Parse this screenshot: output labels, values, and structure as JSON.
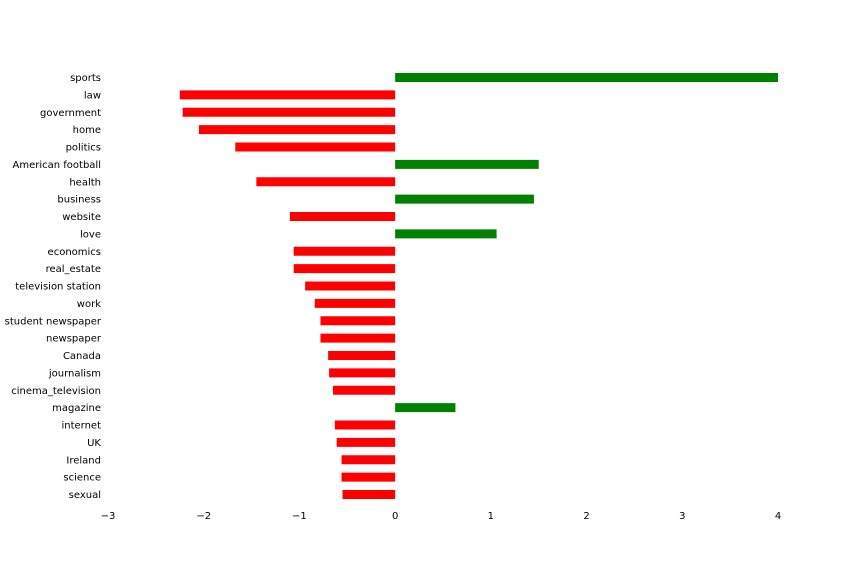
{
  "chart_data": {
    "type": "bar",
    "orientation": "horizontal",
    "title": "",
    "xlabel": "",
    "ylabel": "",
    "xlim": [
      -3,
      4
    ],
    "xticks": [
      "−3",
      "−2",
      "−1",
      "0",
      "1",
      "2",
      "3",
      "4"
    ],
    "grid": false,
    "colors": {
      "positive": "#008000",
      "negative": "#ff0000"
    },
    "categories": [
      "sports",
      "law",
      "government",
      "home",
      "politics",
      "American football",
      "health",
      "business",
      "website",
      "love",
      "economics",
      "real_estate",
      "television station",
      "work",
      "student newspaper",
      "newspaper",
      "Canada",
      "journalism",
      "cinema_television",
      "magazine",
      "internet",
      "UK",
      "Ireland",
      "science",
      "sexual"
    ],
    "values": [
      4.0,
      -2.25,
      -2.22,
      -2.05,
      -1.67,
      1.5,
      -1.45,
      1.45,
      -1.1,
      1.06,
      -1.06,
      -1.06,
      -0.94,
      -0.84,
      -0.78,
      -0.78,
      -0.7,
      -0.69,
      -0.65,
      0.63,
      -0.63,
      -0.61,
      -0.56,
      -0.56,
      -0.55
    ]
  }
}
